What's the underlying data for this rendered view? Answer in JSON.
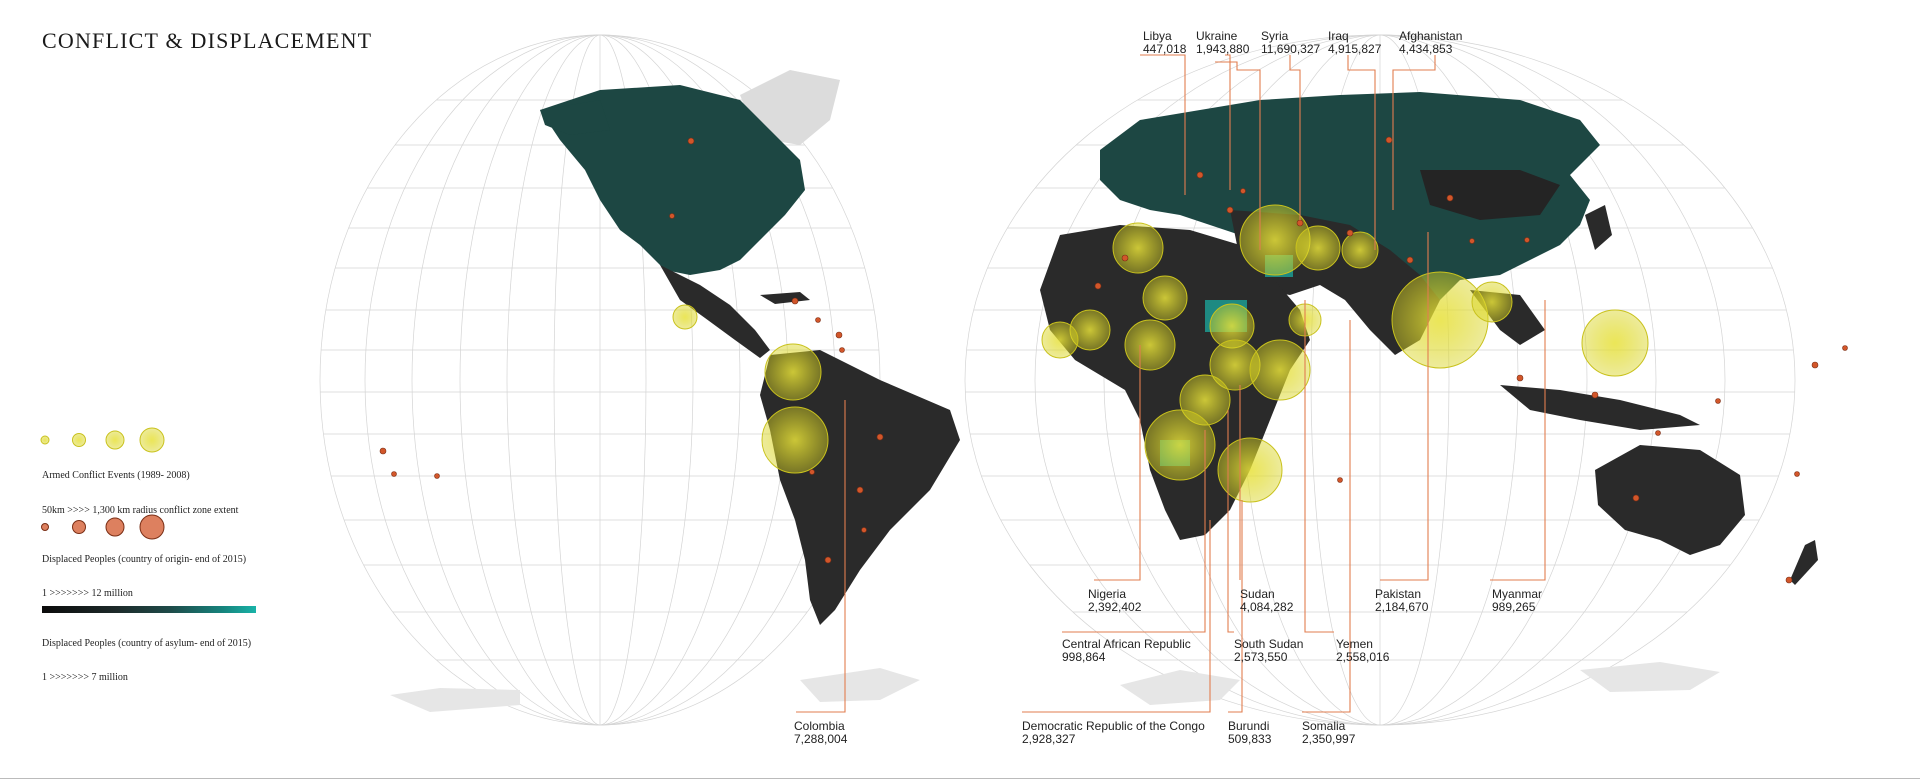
{
  "title": "CONFLICT & DISPLACEMENT",
  "legend": {
    "conflict_title": "Armed Conflict  Events (1989- 2008)",
    "conflict_range": "50km >>>> 1,300 km radius conflict zone extent",
    "origin_title": "Displaced Peoples (country of origin- end of 2015)",
    "origin_range": "1 >>>>>>> 12 million",
    "asylum_title": "Displaced Peoples (country of asylum- end of 2015)",
    "asylum_range": "1 >>>>>>> 7 million"
  },
  "colors": {
    "land_dark": "#2a2a2a",
    "land_teal": "#1d4743",
    "antarctica": "#e6e6e6",
    "graticule": "#cfcfcf",
    "conflict_fill": "#d8d322",
    "event_dot": "#d2562a",
    "leader_line": "#e27d4f",
    "asylum_teal": "#19b3a8"
  },
  "countries": [
    {
      "id": "libya",
      "name": "Libya",
      "value": "447,018"
    },
    {
      "id": "ukraine",
      "name": "Ukraine",
      "value": "1,943,880"
    },
    {
      "id": "syria",
      "name": "Syria",
      "value": "11,690,327"
    },
    {
      "id": "iraq",
      "name": "Iraq",
      "value": "4,915,827"
    },
    {
      "id": "afghanistan",
      "name": "Afghanistan",
      "value": "4,434,853"
    },
    {
      "id": "nigeria",
      "name": "Nigeria",
      "value": "2,392,402"
    },
    {
      "id": "sudan",
      "name": "Sudan",
      "value": "4,084,282"
    },
    {
      "id": "pakistan",
      "name": "Pakistan",
      "value": "2,184,670"
    },
    {
      "id": "myanmar",
      "name": "Myanmar",
      "value": "989,265"
    },
    {
      "id": "car",
      "name": "Central African Republic",
      "value": "998,864"
    },
    {
      "id": "south-sudan",
      "name": "South Sudan",
      "value": "2,573,550"
    },
    {
      "id": "yemen",
      "name": "Yemen",
      "value": "2,558,016"
    },
    {
      "id": "colombia",
      "name": "Colombia",
      "value": "7,288,004"
    },
    {
      "id": "drc",
      "name": "Democratic Republic of the Congo",
      "value": "2,928,327"
    },
    {
      "id": "burundi",
      "name": "Burundi",
      "value": "509,833"
    },
    {
      "id": "somalia",
      "name": "Somalia",
      "value": "2,350,997"
    }
  ]
}
